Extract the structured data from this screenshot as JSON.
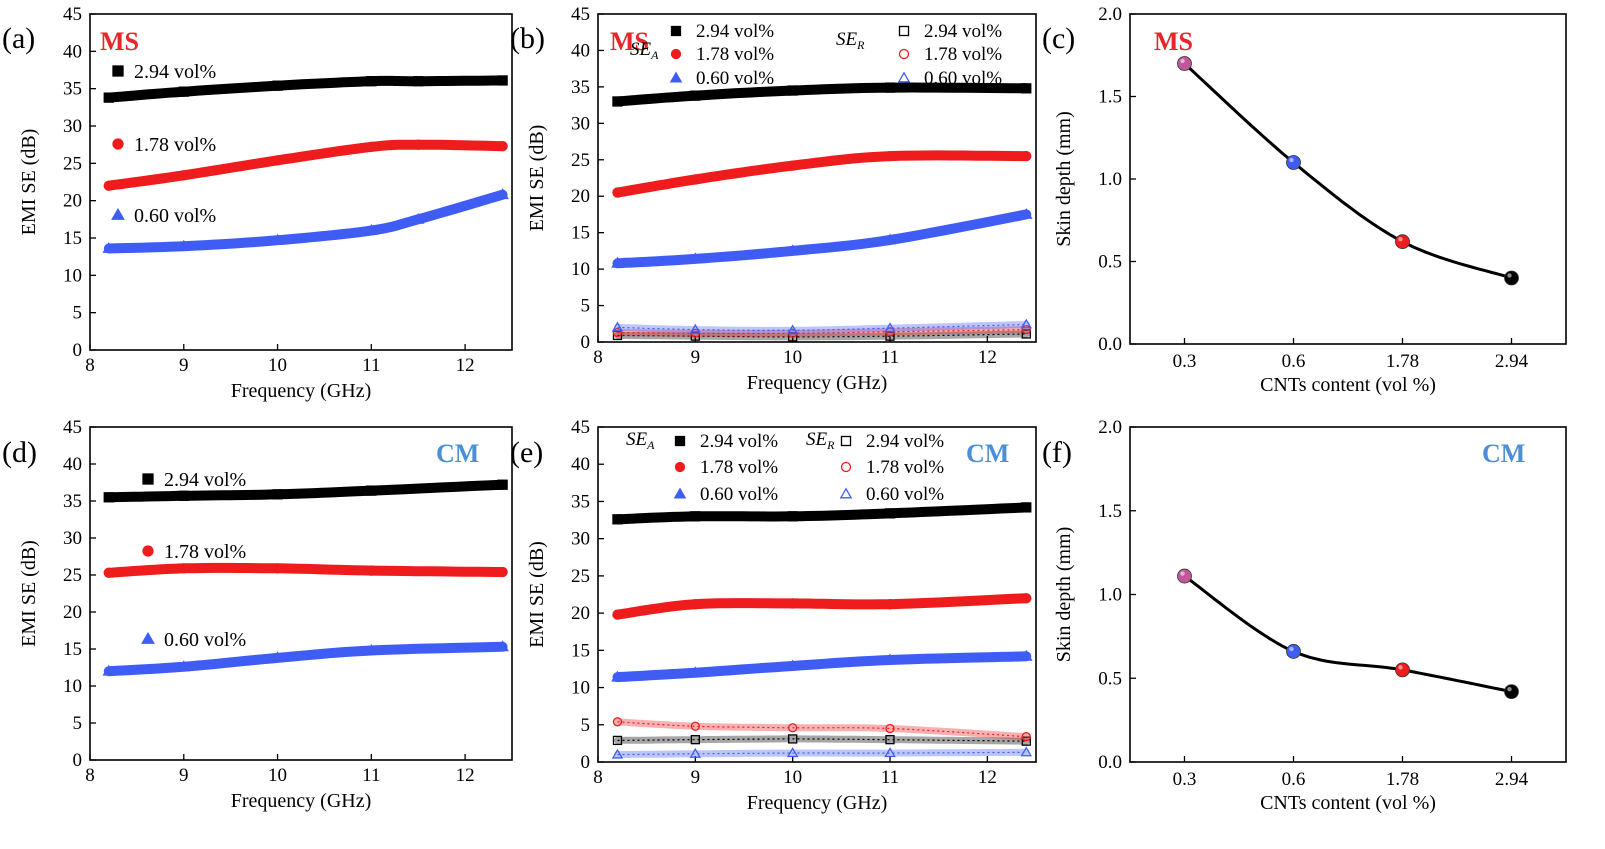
{
  "figure": {
    "x_label": "Frequency (GHz)",
    "ylabel_se": "EMI SE (dB)",
    "ylabel_skin": "Skin depth (mm)",
    "xlabel_cnt": "CNTs content (vol %)"
  },
  "colors": {
    "black": "#000000",
    "red": "#ee1c1c",
    "blue": "#3f5df5",
    "magenta": "#c0589a",
    "ms": "#e8262a",
    "cm": "#4d8fd6"
  },
  "chart_data": [
    {
      "id": "a",
      "type": "line",
      "panel_label": "(a)",
      "tag": "MS",
      "tag_color": "#e8262a",
      "xlabel": "Frequency (GHz)",
      "ylabel": "EMI SE (dB)",
      "xlim": [
        8,
        12.5
      ],
      "ylim": [
        0,
        45
      ],
      "xticks": [
        8,
        9,
        10,
        11,
        12
      ],
      "yticks": [
        0,
        5,
        10,
        15,
        20,
        25,
        30,
        35,
        40,
        45
      ],
      "series": [
        {
          "name": "2.94 vol%",
          "color": "#000000",
          "marker": "square",
          "x": [
            8.2,
            9,
            10,
            11,
            11.5,
            12.4
          ],
          "values": [
            33.8,
            34.6,
            35.4,
            36.0,
            36.0,
            36.1
          ]
        },
        {
          "name": "1.78 vol%",
          "color": "#ee1c1c",
          "marker": "circle",
          "x": [
            8.2,
            9,
            10,
            11,
            11.5,
            12.4
          ],
          "values": [
            22.0,
            23.4,
            25.4,
            27.2,
            27.5,
            27.3
          ]
        },
        {
          "name": "0.60 vol%",
          "color": "#3f5df5",
          "marker": "triangle",
          "x": [
            8.2,
            9,
            10,
            11,
            11.5,
            12.4
          ],
          "values": [
            13.6,
            13.9,
            14.7,
            16.0,
            17.5,
            20.8
          ]
        }
      ]
    },
    {
      "id": "b",
      "type": "line",
      "panel_label": "(b)",
      "tag": "MS",
      "tag_color": "#e8262a",
      "xlabel": "Frequency (GHz)",
      "ylabel": "EMI SE (dB)",
      "xlim": [
        8,
        12.5
      ],
      "ylim": [
        0,
        45
      ],
      "xticks": [
        8,
        9,
        10,
        11,
        12
      ],
      "yticks": [
        0,
        5,
        10,
        15,
        20,
        25,
        30,
        35,
        40,
        45
      ],
      "legend_groups": [
        {
          "title": "SE",
          "sub": "A"
        },
        {
          "title": "SE",
          "sub": "R"
        }
      ],
      "series": [
        {
          "name": "2.94 vol%",
          "group": "SE_A",
          "color": "#000000",
          "marker": "square",
          "x": [
            8.2,
            9,
            10,
            11,
            12.4
          ],
          "values": [
            33.0,
            33.8,
            34.5,
            34.9,
            34.8
          ]
        },
        {
          "name": "1.78 vol%",
          "group": "SE_A",
          "color": "#ee1c1c",
          "marker": "circle",
          "x": [
            8.2,
            9,
            10,
            11,
            12.4
          ],
          "values": [
            20.5,
            22.3,
            24.2,
            25.5,
            25.5
          ]
        },
        {
          "name": "0.60 vol%",
          "group": "SE_A",
          "color": "#3f5df5",
          "marker": "triangle",
          "x": [
            8.2,
            9,
            10,
            11,
            12.4
          ],
          "values": [
            10.8,
            11.4,
            12.5,
            14.0,
            17.5
          ]
        },
        {
          "name": "2.94 vol%",
          "group": "SE_R",
          "color": "#000000",
          "marker": "square-open",
          "x": [
            8.2,
            9,
            10,
            11,
            12.4
          ],
          "values": [
            0.9,
            0.8,
            0.7,
            0.8,
            1.1
          ]
        },
        {
          "name": "1.78 vol%",
          "group": "SE_R",
          "color": "#ee1c1c",
          "marker": "circle-open",
          "x": [
            8.2,
            9,
            10,
            11,
            12.4
          ],
          "values": [
            1.3,
            1.2,
            1.2,
            1.4,
            1.7
          ]
        },
        {
          "name": "0.60 vol%",
          "group": "SE_R",
          "color": "#3f5df5",
          "marker": "triangle-open",
          "x": [
            8.2,
            9,
            10,
            11,
            12.4
          ],
          "values": [
            2.0,
            1.7,
            1.6,
            1.9,
            2.4
          ]
        }
      ]
    },
    {
      "id": "c",
      "type": "scatter",
      "panel_label": "(c)",
      "tag": "MS",
      "tag_color": "#e8262a",
      "xlabel": "CNTs content (vol %)",
      "ylabel": "Skin depth (mm)",
      "categories": [
        "0.3",
        "0.6",
        "1.78",
        "2.94"
      ],
      "ylim": [
        0.0,
        2.0
      ],
      "yticks": [
        0.0,
        0.5,
        1.0,
        1.5,
        2.0
      ],
      "values": [
        1.7,
        1.1,
        0.62,
        0.4
      ],
      "point_colors": [
        "#c0589a",
        "#3f5df5",
        "#ee1c1c",
        "#000000"
      ]
    },
    {
      "id": "d",
      "type": "line",
      "panel_label": "(d)",
      "tag": "CM",
      "tag_color": "#4d8fd6",
      "xlabel": "Frequency (GHz)",
      "ylabel": "EMI SE (dB)",
      "xlim": [
        8,
        12.5
      ],
      "ylim": [
        0,
        45
      ],
      "xticks": [
        8,
        9,
        10,
        11,
        12
      ],
      "yticks": [
        0,
        5,
        10,
        15,
        20,
        25,
        30,
        35,
        40,
        45
      ],
      "series": [
        {
          "name": "2.94 vol%",
          "color": "#000000",
          "marker": "square",
          "x": [
            8.2,
            9,
            10,
            11,
            12.4
          ],
          "values": [
            35.5,
            35.7,
            35.9,
            36.4,
            37.2
          ]
        },
        {
          "name": "1.78 vol%",
          "color": "#ee1c1c",
          "marker": "circle",
          "x": [
            8.2,
            9,
            10,
            11,
            12.4
          ],
          "values": [
            25.3,
            25.9,
            25.9,
            25.6,
            25.4
          ]
        },
        {
          "name": "0.60 vol%",
          "color": "#3f5df5",
          "marker": "triangle",
          "x": [
            8.2,
            9,
            10,
            11,
            12.4
          ],
          "values": [
            12.0,
            12.6,
            13.8,
            14.8,
            15.3
          ]
        }
      ]
    },
    {
      "id": "e",
      "type": "line",
      "panel_label": "(e)",
      "tag": "CM",
      "tag_color": "#4d8fd6",
      "xlabel": "Frequency (GHz)",
      "ylabel": "EMI SE (dB)",
      "xlim": [
        8,
        12.5
      ],
      "ylim": [
        0,
        45
      ],
      "xticks": [
        8,
        9,
        10,
        11,
        12
      ],
      "yticks": [
        0,
        5,
        10,
        15,
        20,
        25,
        30,
        35,
        40,
        45
      ],
      "legend_groups": [
        {
          "title": "SE",
          "sub": "A"
        },
        {
          "title": "SE",
          "sub": "R"
        }
      ],
      "series": [
        {
          "name": "2.94 vol%",
          "group": "SE_A",
          "color": "#000000",
          "marker": "square",
          "x": [
            8.2,
            9,
            10,
            11,
            12.4
          ],
          "values": [
            32.6,
            33.0,
            33.0,
            33.4,
            34.2
          ]
        },
        {
          "name": "1.78 vol%",
          "group": "SE_A",
          "color": "#ee1c1c",
          "marker": "circle",
          "x": [
            8.2,
            9,
            10,
            11,
            12.4
          ],
          "values": [
            19.8,
            21.2,
            21.3,
            21.2,
            22.0
          ]
        },
        {
          "name": "0.60 vol%",
          "group": "SE_A",
          "color": "#3f5df5",
          "marker": "triangle",
          "x": [
            8.2,
            9,
            10,
            11,
            12.4
          ],
          "values": [
            11.4,
            12.0,
            12.9,
            13.7,
            14.2
          ]
        },
        {
          "name": "2.94 vol%",
          "group": "SE_R",
          "color": "#000000",
          "marker": "square-open",
          "x": [
            8.2,
            9,
            10,
            11,
            12.4
          ],
          "values": [
            2.9,
            3.0,
            3.1,
            3.0,
            2.8
          ]
        },
        {
          "name": "1.78 vol%",
          "group": "SE_R",
          "color": "#ee1c1c",
          "marker": "circle-open",
          "x": [
            8.2,
            9,
            10,
            11,
            12.4
          ],
          "values": [
            5.4,
            4.8,
            4.6,
            4.5,
            3.4
          ]
        },
        {
          "name": "0.60 vol%",
          "group": "SE_R",
          "color": "#3f5df5",
          "marker": "triangle-open",
          "x": [
            8.2,
            9,
            10,
            11,
            12.4
          ],
          "values": [
            1.0,
            1.1,
            1.2,
            1.2,
            1.3
          ]
        }
      ]
    },
    {
      "id": "f",
      "type": "scatter",
      "panel_label": "(f)",
      "tag": "CM",
      "tag_color": "#4d8fd6",
      "xlabel": "CNTs content (vol %)",
      "ylabel": "Skin depth (mm)",
      "categories": [
        "0.3",
        "0.6",
        "1.78",
        "2.94"
      ],
      "ylim": [
        0.0,
        2.0
      ],
      "yticks": [
        0.0,
        0.5,
        1.0,
        1.5,
        2.0
      ],
      "values": [
        1.11,
        0.66,
        0.55,
        0.42
      ],
      "point_colors": [
        "#c0589a",
        "#3f5df5",
        "#ee1c1c",
        "#000000"
      ]
    }
  ]
}
